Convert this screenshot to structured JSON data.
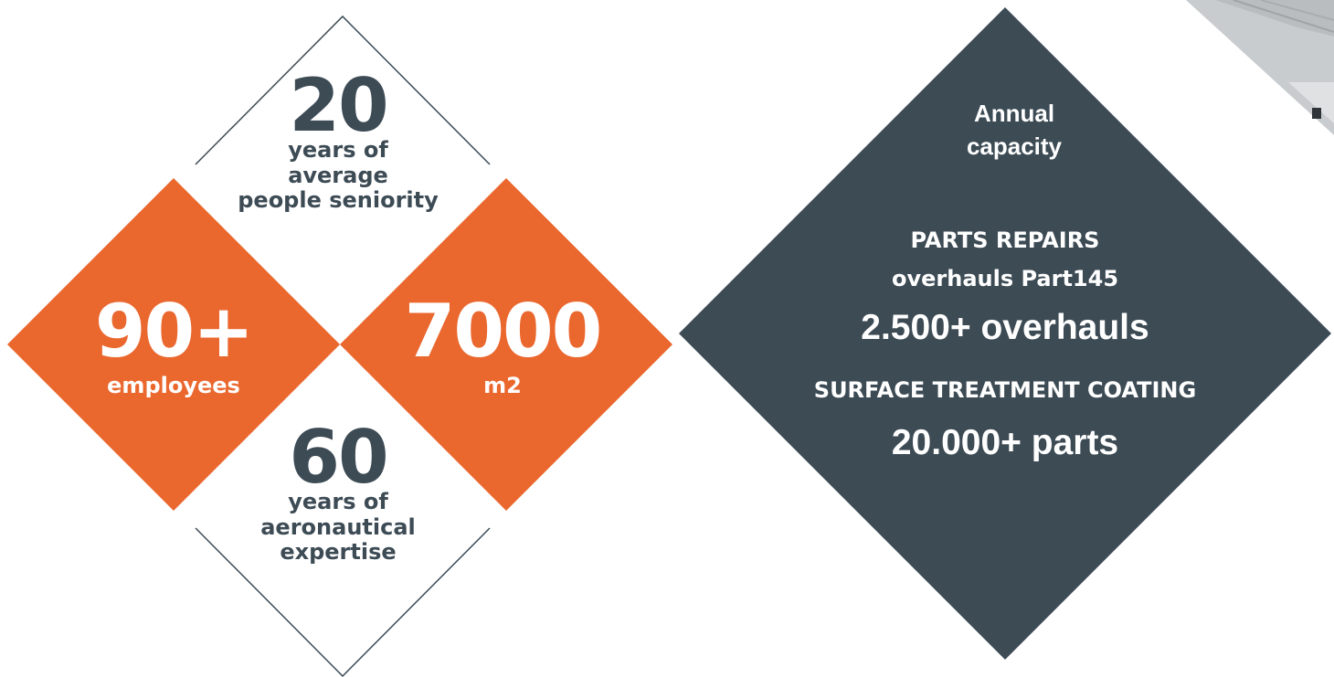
{
  "colors": {
    "orange": "#ea672e",
    "slate": "#3d4b55",
    "outline": "#3d4b55",
    "white": "#ffffff"
  },
  "stats": {
    "seniority": {
      "value": "20",
      "label_lines": [
        "years of",
        "average",
        "people seniority"
      ]
    },
    "employees": {
      "value": "90+",
      "label": "employees"
    },
    "area": {
      "value": "7000",
      "label": "m2"
    },
    "expertise": {
      "value": "60",
      "label_lines": [
        "years of",
        "aeronautical",
        "expertise"
      ]
    }
  },
  "capacity": {
    "heading_lines": [
      "Annual",
      "capacity"
    ],
    "parts_repairs": {
      "title": "PARTS REPAIRS",
      "subtitle": "overhauls Part145",
      "value": "2.500+ overhauls"
    },
    "surface_treatment": {
      "title": "SURFACE TREATMENT COATING",
      "value": "20.000+ parts"
    }
  }
}
